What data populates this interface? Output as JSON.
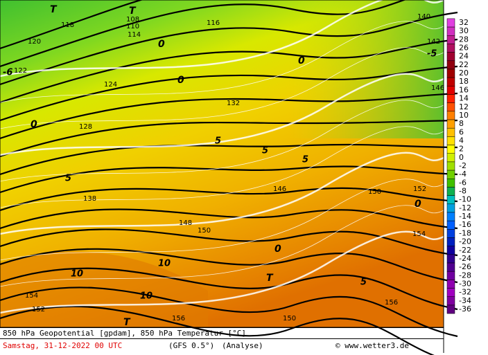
{
  "footer": {
    "line1": "850 hPa Geopotential [gpdam], 850 hPa Temperatur [°C]",
    "date": "Samstag, 31-12-2022  00 UTC",
    "model": "(GFS 0.5°)",
    "run": "(Analyse)",
    "credit": "© www.wetter3.de"
  },
  "colorbar": {
    "levels": [
      32,
      30,
      28,
      26,
      24,
      22,
      20,
      18,
      16,
      14,
      12,
      10,
      8,
      6,
      4,
      2,
      0,
      -2,
      -4,
      -6,
      -8,
      -10,
      -12,
      -14,
      -16,
      -18,
      -20,
      -22,
      -24,
      -26,
      -28,
      -30,
      -32,
      -34,
      -36
    ],
    "colors": [
      "#e040e0",
      "#d030c0",
      "#c02090",
      "#b01060",
      "#a00030",
      "#900010",
      "#a00000",
      "#c00000",
      "#e00000",
      "#ff2000",
      "#ff5000",
      "#ff8000",
      "#ffa000",
      "#ffc000",
      "#ffe000",
      "#ffff00",
      "#d0f000",
      "#a0e000",
      "#70d000",
      "#40c000",
      "#10b050",
      "#00c0c0",
      "#00a0e0",
      "#0080ff",
      "#0060ff",
      "#0040e0",
      "#0020c0",
      "#1000a0",
      "#300090",
      "#500090",
      "#7000a0",
      "#9000b0",
      "#a000c0",
      "#8000a0",
      "#600080"
    ]
  },
  "map": {
    "labels": [
      "T",
      "T",
      "108",
      "110",
      "114",
      "116",
      "118",
      "120",
      "122",
      "124",
      "128",
      "132",
      "138",
      "140",
      "142",
      "146",
      "146",
      "148",
      "150",
      "150",
      "152",
      "154",
      "156",
      "154",
      "152",
      "150",
      "156",
      "T",
      "T",
      "0",
      "0",
      "0",
      "0",
      "5",
      "5",
      "5",
      "5",
      "10",
      "10",
      "10",
      "-5",
      "-6",
      "0",
      "5",
      "0"
    ]
  }
}
